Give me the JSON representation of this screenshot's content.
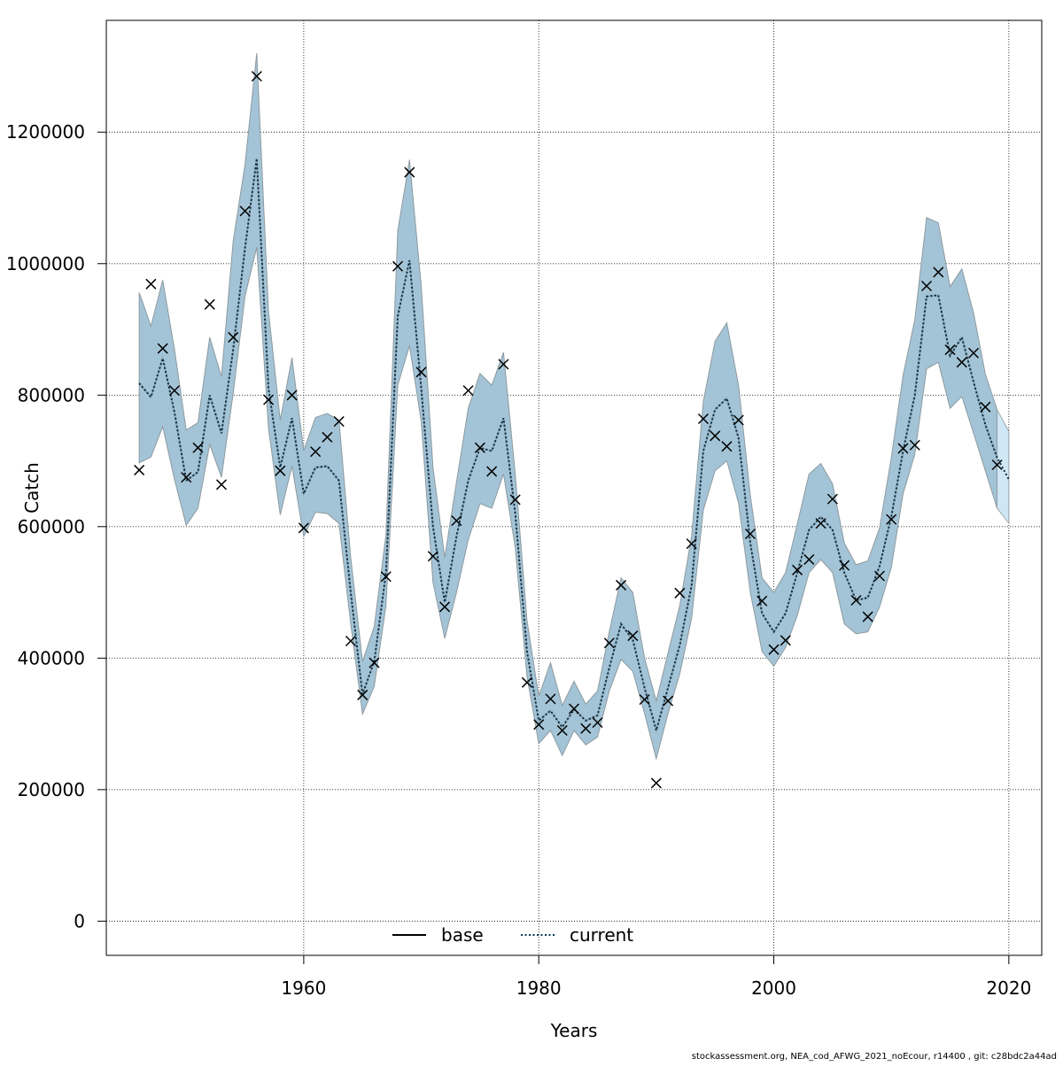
{
  "chart_data": {
    "type": "line",
    "xlabel": "Years",
    "ylabel": "Catch",
    "xlim": [
      1943.2,
      2022.8
    ],
    "ylim": [
      -52000,
      1370000
    ],
    "x_ticks": [
      1960,
      1980,
      2000,
      2020
    ],
    "y_ticks": [
      0,
      200000,
      400000,
      600000,
      800000,
      1000000,
      1200000
    ],
    "grid": true,
    "legend": {
      "position": "bottom-center",
      "entries": [
        "base",
        "current"
      ]
    },
    "footer": "stockassessment.org, NEA_cod_AFWG_2021_noEcour, r14400 , git: c28bdc2a44ad",
    "colors": {
      "band": "#a3c4d6",
      "band_edge": "#8e9aa0",
      "band_last": "#cfe7f4",
      "line": "#000000",
      "grid": "#222222"
    },
    "series": [
      {
        "name": "base",
        "style": "solid",
        "years": [
          1946,
          1947,
          1948,
          1949,
          1950,
          1951,
          1952,
          1953,
          1954,
          1955,
          1956,
          1957,
          1958,
          1959,
          1960,
          1961,
          1962,
          1963,
          1964,
          1965,
          1966,
          1967,
          1968,
          1969,
          1970,
          1971,
          1972,
          1973,
          1974,
          1975,
          1976,
          1977,
          1978,
          1979,
          1980,
          1981,
          1982,
          1983,
          1984,
          1985,
          1986,
          1987,
          1988,
          1989,
          1990,
          1991,
          1992,
          1993,
          1994,
          1995,
          1996,
          1997,
          1998,
          1999,
          2000,
          2001,
          2002,
          2003,
          2004,
          2005,
          2006,
          2007,
          2008,
          2009,
          2010,
          2011,
          2012,
          2013,
          2014,
          2015,
          2016,
          2017,
          2018,
          2019
        ],
        "fit": [
          818000,
          797000,
          856000,
          774000,
          670000,
          683000,
          800000,
          742000,
          870000,
          1023000,
          1160000,
          810000,
          690000,
          765000,
          650000,
          690000,
          692000,
          670000,
          500000,
          345000,
          395000,
          530000,
          920000,
          1005000,
          810000,
          600000,
          485000,
          585000,
          670000,
          720000,
          715000,
          765000,
          620000,
          410000,
          305000,
          320000,
          295000,
          322000,
          305000,
          313000,
          385000,
          452000,
          428000,
          355000,
          290000,
          355000,
          420000,
          510000,
          715000,
          778000,
          795000,
          735000,
          575000,
          468000,
          440000,
          468000,
          530000,
          595000,
          615000,
          595000,
          530000,
          488000,
          492000,
          540000,
          615000,
          715000,
          800000,
          950000,
          952000,
          860000,
          888000,
          820000,
          755000,
          705000
        ],
        "lower": [
          697000,
          706000,
          752000,
          672000,
          602000,
          628000,
          725000,
          675000,
          803000,
          950000,
          1025000,
          750000,
          618000,
          692000,
          585000,
          622000,
          620000,
          605000,
          452000,
          315000,
          357000,
          480000,
          815000,
          875000,
          760000,
          515000,
          430000,
          500000,
          580000,
          635000,
          628000,
          680000,
          568000,
          372000,
          270000,
          290000,
          252000,
          290000,
          268000,
          280000,
          350000,
          398000,
          380000,
          316000,
          247000,
          316000,
          376000,
          460000,
          625000,
          685000,
          700000,
          636000,
          500000,
          410000,
          388000,
          416000,
          465000,
          530000,
          550000,
          530000,
          452000,
          437000,
          440000,
          478000,
          538000,
          650000,
          710000,
          840000,
          850000,
          780000,
          798000,
          742000,
          685000,
          628000
        ],
        "upper": [
          956000,
          905000,
          975000,
          870000,
          747000,
          758000,
          888000,
          828000,
          1035000,
          1150000,
          1320000,
          928000,
          762000,
          857000,
          716000,
          766000,
          772000,
          762000,
          553000,
          395000,
          448000,
          588000,
          1050000,
          1158000,
          966000,
          690000,
          553000,
          668000,
          780000,
          833000,
          815000,
          865000,
          680000,
          457000,
          342000,
          393000,
          328000,
          365000,
          330000,
          350000,
          440000,
          522000,
          500000,
          400000,
          335000,
          408000,
          480000,
          585000,
          790000,
          882000,
          910000,
          815000,
          648000,
          522000,
          500000,
          530000,
          604000,
          680000,
          696000,
          665000,
          575000,
          542000,
          548000,
          598000,
          705000,
          830000,
          915000,
          1070000,
          1062000,
          965000,
          992000,
          925000,
          832000,
          778000
        ],
        "last_band": {
          "years": [
            2019,
            2020
          ],
          "lower": [
            628000,
            605000
          ],
          "upper": [
            778000,
            745000
          ]
        }
      },
      {
        "name": "current",
        "style": "dotted",
        "years": [
          1946,
          1947,
          1948,
          1949,
          1950,
          1951,
          1952,
          1953,
          1954,
          1955,
          1956,
          1957,
          1958,
          1959,
          1960,
          1961,
          1962,
          1963,
          1964,
          1965,
          1966,
          1967,
          1968,
          1969,
          1970,
          1971,
          1972,
          1973,
          1974,
          1975,
          1976,
          1977,
          1978,
          1979,
          1980,
          1981,
          1982,
          1983,
          1984,
          1985,
          1986,
          1987,
          1988,
          1989,
          1990,
          1991,
          1992,
          1993,
          1994,
          1995,
          1996,
          1997,
          1998,
          1999,
          2000,
          2001,
          2002,
          2003,
          2004,
          2005,
          2006,
          2007,
          2008,
          2009,
          2010,
          2011,
          2012,
          2013,
          2014,
          2015,
          2016,
          2017,
          2018,
          2019,
          2020
        ],
        "fit": [
          818000,
          797000,
          856000,
          774000,
          670000,
          683000,
          800000,
          742000,
          870000,
          1023000,
          1160000,
          810000,
          690000,
          765000,
          650000,
          690000,
          692000,
          670000,
          500000,
          345000,
          395000,
          530000,
          920000,
          1005000,
          810000,
          600000,
          485000,
          585000,
          670000,
          720000,
          715000,
          765000,
          620000,
          410000,
          305000,
          320000,
          295000,
          322000,
          305000,
          313000,
          385000,
          452000,
          428000,
          355000,
          290000,
          355000,
          420000,
          510000,
          715000,
          778000,
          795000,
          735000,
          575000,
          468000,
          440000,
          468000,
          530000,
          595000,
          615000,
          595000,
          530000,
          488000,
          492000,
          540000,
          615000,
          715000,
          800000,
          950000,
          952000,
          860000,
          888000,
          820000,
          755000,
          705000,
          672000
        ]
      }
    ],
    "observations": {
      "marker": "x",
      "years": [
        1946,
        1947,
        1948,
        1949,
        1950,
        1951,
        1952,
        1953,
        1954,
        1955,
        1956,
        1957,
        1958,
        1959,
        1960,
        1961,
        1962,
        1963,
        1964,
        1965,
        1966,
        1967,
        1968,
        1969,
        1970,
        1971,
        1972,
        1973,
        1974,
        1975,
        1976,
        1977,
        1978,
        1979,
        1980,
        1981,
        1982,
        1983,
        1984,
        1985,
        1986,
        1987,
        1988,
        1989,
        1990,
        1991,
        1992,
        1993,
        1994,
        1995,
        1996,
        1997,
        1998,
        1999,
        2000,
        2001,
        2002,
        2003,
        2004,
        2005,
        2006,
        2007,
        2008,
        2009,
        2010,
        2011,
        2012,
        2013,
        2014,
        2015,
        2016,
        2017,
        2018,
        2019
      ],
      "values": [
        686000,
        969000,
        871000,
        807000,
        675000,
        720000,
        938000,
        664000,
        888000,
        1080000,
        1285000,
        793000,
        685000,
        800000,
        598000,
        714000,
        736000,
        760000,
        426000,
        344000,
        393000,
        524000,
        996000,
        1139000,
        835000,
        555000,
        478000,
        609000,
        807000,
        720000,
        684000,
        847000,
        641000,
        363000,
        299000,
        338000,
        290000,
        323000,
        293000,
        302000,
        423000,
        511000,
        434000,
        337000,
        210000,
        335000,
        499000,
        574000,
        764000,
        738000,
        722000,
        762000,
        589000,
        487000,
        413000,
        427000,
        534000,
        550000,
        605000,
        642000,
        541000,
        488000,
        463000,
        525000,
        611000,
        719000,
        724000,
        966000,
        987000,
        869000,
        850000,
        864000,
        782000,
        694000
      ]
    }
  }
}
